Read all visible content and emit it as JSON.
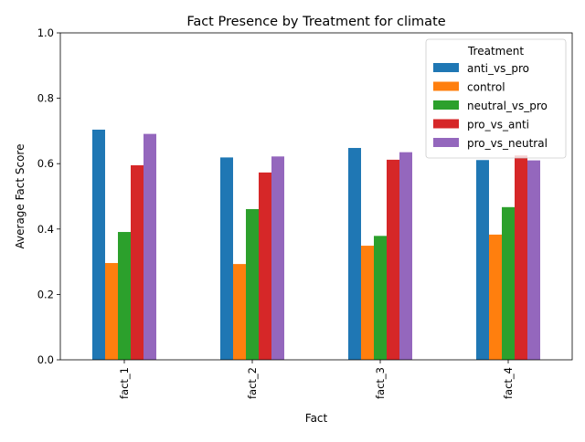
{
  "chart_data": {
    "type": "bar",
    "title": "Fact Presence by Treatment for climate",
    "xlabel": "Fact",
    "ylabel": "Average Fact Score",
    "ylim": [
      0,
      1.0
    ],
    "yticks": [
      "0.0",
      "0.2",
      "0.4",
      "0.6",
      "0.8",
      "1.0"
    ],
    "categories": [
      "fact_1",
      "fact_2",
      "fact_3",
      "fact_4"
    ],
    "grid": false,
    "legend": {
      "title": "Treatment",
      "placement": "top-right"
    },
    "series": [
      {
        "name": "anti_vs_pro",
        "color": "#1f77b4",
        "values": [
          0.704,
          0.619,
          0.648,
          0.611
        ]
      },
      {
        "name": "control",
        "color": "#ff7f0e",
        "values": [
          0.296,
          0.293,
          0.349,
          0.383
        ]
      },
      {
        "name": "neutral_vs_pro",
        "color": "#2ca02c",
        "values": [
          0.391,
          0.461,
          0.379,
          0.467
        ]
      },
      {
        "name": "pro_vs_anti",
        "color": "#d62728",
        "values": [
          0.595,
          0.573,
          0.612,
          0.625
        ]
      },
      {
        "name": "pro_vs_neutral",
        "color": "#9467bd",
        "values": [
          0.691,
          0.622,
          0.635,
          0.61
        ]
      }
    ]
  }
}
